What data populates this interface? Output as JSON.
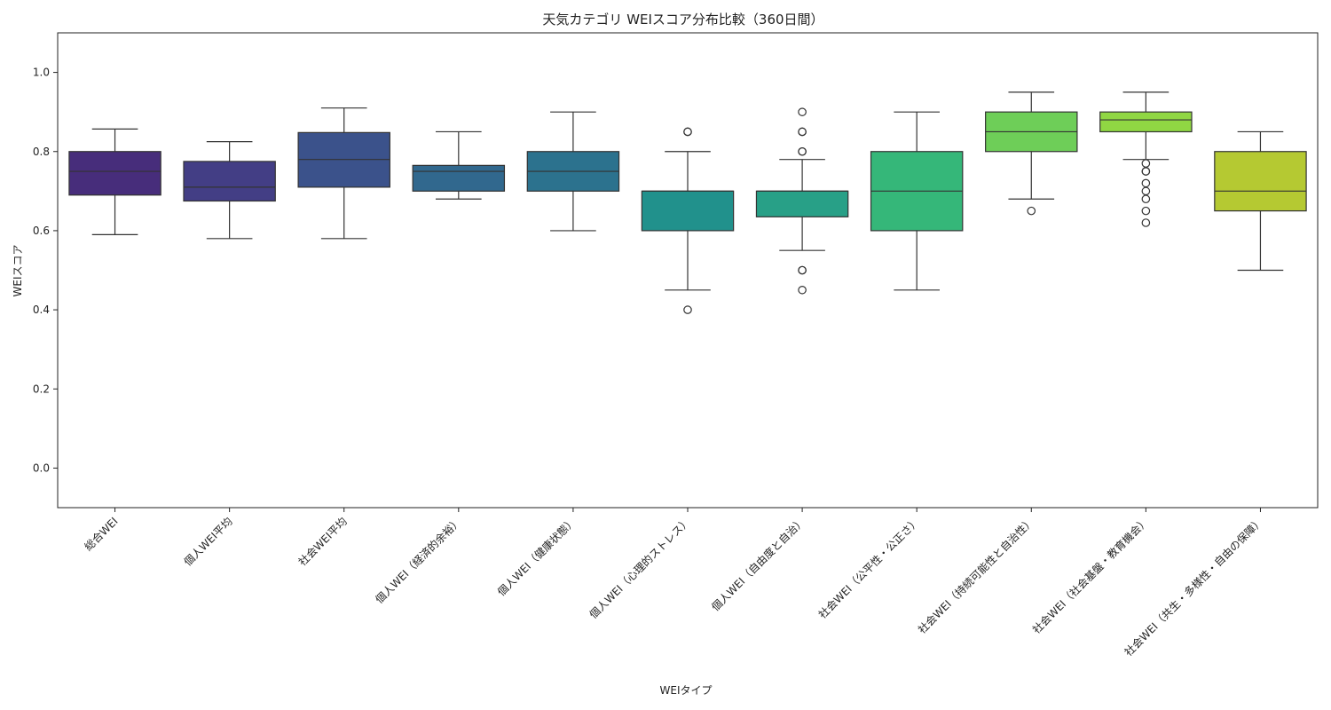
{
  "chart_data": {
    "type": "box",
    "title": "天気カテゴリ WEIスコア分布比較（360日間）",
    "xlabel": "WEIタイプ",
    "ylabel": "WEIスコア",
    "ylim": [
      -0.1,
      1.1
    ],
    "yticks": [
      0.0,
      0.2,
      0.4,
      0.6,
      0.8,
      1.0
    ],
    "ytick_labels": [
      "0.0",
      "0.2",
      "0.4",
      "0.6",
      "0.8",
      "1.0"
    ],
    "grid": false,
    "categories": [
      "総合WEI",
      "個人WEI平均",
      "社会WEI平均",
      "個人WEI（経済的余裕）",
      "個人WEI（健康状態）",
      "個人WEI（心理的ストレス）",
      "個人WEI（自由度と自治）",
      "社会WEI（公平性・公正さ）",
      "社会WEI（持続可能性と自治性）",
      "社会WEI（社会基盤・教育機会）",
      "社会WEI（共生・多様性・自由の保障）"
    ],
    "boxes": [
      {
        "color": "#472d7b",
        "whisker_low": 0.59,
        "q1": 0.69,
        "median": 0.75,
        "q3": 0.8,
        "whisker_high": 0.857,
        "outliers": []
      },
      {
        "color": "#433e85",
        "whisker_low": 0.58,
        "q1": 0.675,
        "median": 0.71,
        "q3": 0.775,
        "whisker_high": 0.825,
        "outliers": []
      },
      {
        "color": "#3b528b",
        "whisker_low": 0.58,
        "q1": 0.71,
        "median": 0.78,
        "q3": 0.848,
        "whisker_high": 0.91,
        "outliers": []
      },
      {
        "color": "#31688e",
        "whisker_low": 0.68,
        "q1": 0.7,
        "median": 0.75,
        "q3": 0.765,
        "whisker_high": 0.85,
        "outliers": []
      },
      {
        "color": "#2c728e",
        "whisker_low": 0.6,
        "q1": 0.7,
        "median": 0.75,
        "q3": 0.8,
        "whisker_high": 0.9,
        "outliers": []
      },
      {
        "color": "#21918c",
        "whisker_low": 0.45,
        "q1": 0.6,
        "median": 0.7,
        "q3": 0.7,
        "whisker_high": 0.8,
        "outliers": [
          0.85,
          0.85,
          0.4
        ]
      },
      {
        "color": "#28a087",
        "whisker_low": 0.55,
        "q1": 0.635,
        "median": 0.7,
        "q3": 0.7,
        "whisker_high": 0.78,
        "outliers": [
          0.9,
          0.85,
          0.85,
          0.8,
          0.8,
          0.5,
          0.5,
          0.45
        ]
      },
      {
        "color": "#35b779",
        "whisker_low": 0.45,
        "q1": 0.6,
        "median": 0.7,
        "q3": 0.8,
        "whisker_high": 0.9,
        "outliers": []
      },
      {
        "color": "#6ece58",
        "whisker_low": 0.68,
        "q1": 0.8,
        "median": 0.85,
        "q3": 0.9,
        "whisker_high": 0.95,
        "outliers": [
          0.65
        ]
      },
      {
        "color": "#90d743",
        "whisker_low": 0.78,
        "q1": 0.85,
        "median": 0.88,
        "q3": 0.9,
        "whisker_high": 0.95,
        "outliers": [
          0.77,
          0.75,
          0.75,
          0.72,
          0.7,
          0.68,
          0.65,
          0.62
        ]
      },
      {
        "color": "#b5c932",
        "whisker_low": 0.5,
        "q1": 0.65,
        "median": 0.7,
        "q3": 0.8,
        "whisker_high": 0.85,
        "outliers": []
      }
    ]
  }
}
